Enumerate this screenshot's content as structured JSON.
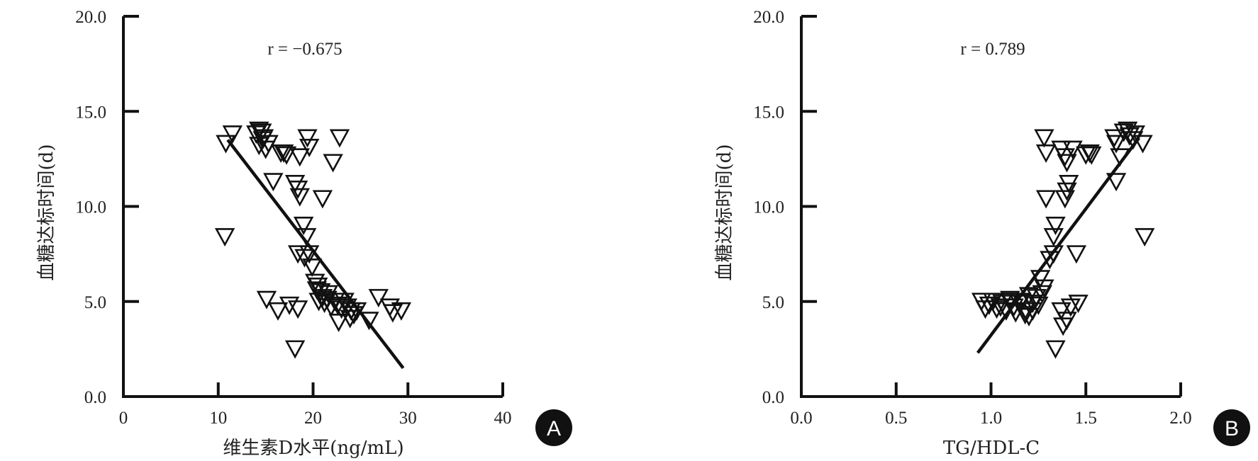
{
  "chart_data": [
    {
      "type": "scatter",
      "panel_label": "A",
      "xlabel": "维生素D水平(ng/mL)",
      "ylabel": "血糖达标时间(d)",
      "annotation": "r = −0.675",
      "xlim": [
        0,
        40
      ],
      "ylim": [
        0,
        20
      ],
      "xticks": [
        "0",
        "10",
        "20",
        "30",
        "40"
      ],
      "yticks": [
        "0.0",
        "5.0",
        "10.0",
        "15.0",
        "20.0"
      ],
      "marker": "open-down-triangle",
      "fit_line": {
        "x": [
          11.0,
          29.5
        ],
        "y": [
          13.5,
          1.5
        ]
      },
      "points": [
        [
          11.5,
          13.8
        ],
        [
          10.8,
          13.3
        ],
        [
          14.0,
          13.8
        ],
        [
          14.3,
          14.0
        ],
        [
          14.6,
          13.9
        ],
        [
          14.8,
          13.6
        ],
        [
          14.3,
          13.2
        ],
        [
          15.0,
          13.0
        ],
        [
          15.3,
          13.3
        ],
        [
          14.7,
          13.5
        ],
        [
          16.9,
          12.8
        ],
        [
          17.2,
          12.7
        ],
        [
          16.6,
          12.8
        ],
        [
          18.6,
          12.6
        ],
        [
          19.4,
          13.6
        ],
        [
          19.6,
          13.1
        ],
        [
          22.8,
          13.6
        ],
        [
          22.1,
          12.3
        ],
        [
          15.8,
          11.3
        ],
        [
          18.1,
          11.2
        ],
        [
          18.4,
          10.9
        ],
        [
          18.6,
          10.5
        ],
        [
          21.0,
          10.4
        ],
        [
          19.0,
          9.0
        ],
        [
          19.3,
          8.4
        ],
        [
          10.7,
          8.4
        ],
        [
          18.4,
          7.5
        ],
        [
          19.1,
          7.3
        ],
        [
          19.6,
          7.5
        ],
        [
          19.9,
          6.8
        ],
        [
          20.2,
          6.0
        ],
        [
          20.5,
          5.8
        ],
        [
          20.8,
          5.5
        ],
        [
          21.0,
          5.2
        ],
        [
          20.6,
          5.0
        ],
        [
          21.2,
          4.9
        ],
        [
          21.5,
          5.1
        ],
        [
          21.9,
          4.7
        ],
        [
          22.3,
          5.0
        ],
        [
          22.6,
          4.8
        ],
        [
          23.0,
          4.6
        ],
        [
          23.3,
          5.0
        ],
        [
          23.6,
          4.7
        ],
        [
          24.0,
          4.5
        ],
        [
          24.3,
          4.3
        ],
        [
          24.6,
          4.5
        ],
        [
          23.9,
          4.1
        ],
        [
          22.7,
          3.9
        ],
        [
          25.9,
          4.0
        ],
        [
          26.9,
          5.2
        ],
        [
          28.1,
          4.7
        ],
        [
          28.4,
          4.4
        ],
        [
          29.3,
          4.5
        ],
        [
          15.1,
          5.1
        ],
        [
          16.3,
          4.5
        ],
        [
          17.5,
          4.8
        ],
        [
          18.4,
          4.6
        ],
        [
          18.1,
          2.5
        ],
        [
          20.4,
          5.6
        ],
        [
          21.6,
          5.4
        ]
      ]
    },
    {
      "type": "scatter",
      "panel_label": "B",
      "xlabel": "TG/HDL-C",
      "ylabel": "血糖达标时间(d)",
      "annotation": "r = 0.789",
      "xlim": [
        0,
        2
      ],
      "ylim": [
        0,
        20
      ],
      "xticks": [
        "0.0",
        "0.5",
        "1.0",
        "1.5",
        "2.0"
      ],
      "yticks": [
        "0.0",
        "5.0",
        "10.0",
        "15.0",
        "20.0"
      ],
      "marker": "open-down-triangle",
      "fit_line": {
        "x": [
          0.93,
          1.78
        ],
        "y": [
          2.3,
          13.6
        ]
      },
      "points": [
        [
          0.95,
          5.0
        ],
        [
          0.97,
          4.6
        ],
        [
          0.99,
          4.8
        ],
        [
          1.01,
          5.0
        ],
        [
          1.03,
          4.6
        ],
        [
          1.06,
          4.9
        ],
        [
          1.08,
          4.5
        ],
        [
          1.1,
          5.0
        ],
        [
          1.12,
          4.7
        ],
        [
          1.13,
          4.4
        ],
        [
          1.15,
          4.9
        ],
        [
          1.18,
          4.5
        ],
        [
          1.2,
          4.2
        ],
        [
          1.22,
          4.9
        ],
        [
          1.24,
          5.2
        ],
        [
          1.25,
          4.8
        ],
        [
          1.27,
          5.4
        ],
        [
          1.28,
          5.7
        ],
        [
          1.26,
          6.2
        ],
        [
          1.31,
          7.2
        ],
        [
          1.33,
          7.5
        ],
        [
          1.33,
          8.4
        ],
        [
          1.34,
          9.0
        ],
        [
          1.29,
          10.4
        ],
        [
          1.39,
          10.4
        ],
        [
          1.4,
          10.8
        ],
        [
          1.41,
          11.2
        ],
        [
          1.28,
          13.6
        ],
        [
          1.29,
          12.8
        ],
        [
          1.37,
          13.0
        ],
        [
          1.39,
          12.6
        ],
        [
          1.4,
          12.3
        ],
        [
          1.43,
          13.0
        ],
        [
          1.5,
          12.7
        ],
        [
          1.52,
          12.8
        ],
        [
          1.53,
          12.7
        ],
        [
          1.65,
          13.6
        ],
        [
          1.66,
          13.3
        ],
        [
          1.68,
          12.6
        ],
        [
          1.7,
          13.9
        ],
        [
          1.72,
          14.0
        ],
        [
          1.73,
          13.7
        ],
        [
          1.75,
          13.5
        ],
        [
          1.76,
          13.8
        ],
        [
          1.8,
          13.3
        ],
        [
          1.81,
          8.4
        ],
        [
          1.66,
          11.3
        ],
        [
          1.45,
          7.5
        ],
        [
          1.46,
          4.9
        ],
        [
          1.42,
          4.7
        ],
        [
          1.4,
          4.0
        ],
        [
          1.38,
          3.7
        ],
        [
          1.37,
          4.5
        ],
        [
          1.34,
          2.5
        ],
        [
          1.22,
          4.5
        ],
        [
          1.18,
          4.3
        ],
        [
          1.05,
          4.7
        ],
        [
          1.1,
          5.1
        ],
        [
          1.16,
          5.0
        ],
        [
          1.2,
          5.3
        ]
      ]
    }
  ]
}
